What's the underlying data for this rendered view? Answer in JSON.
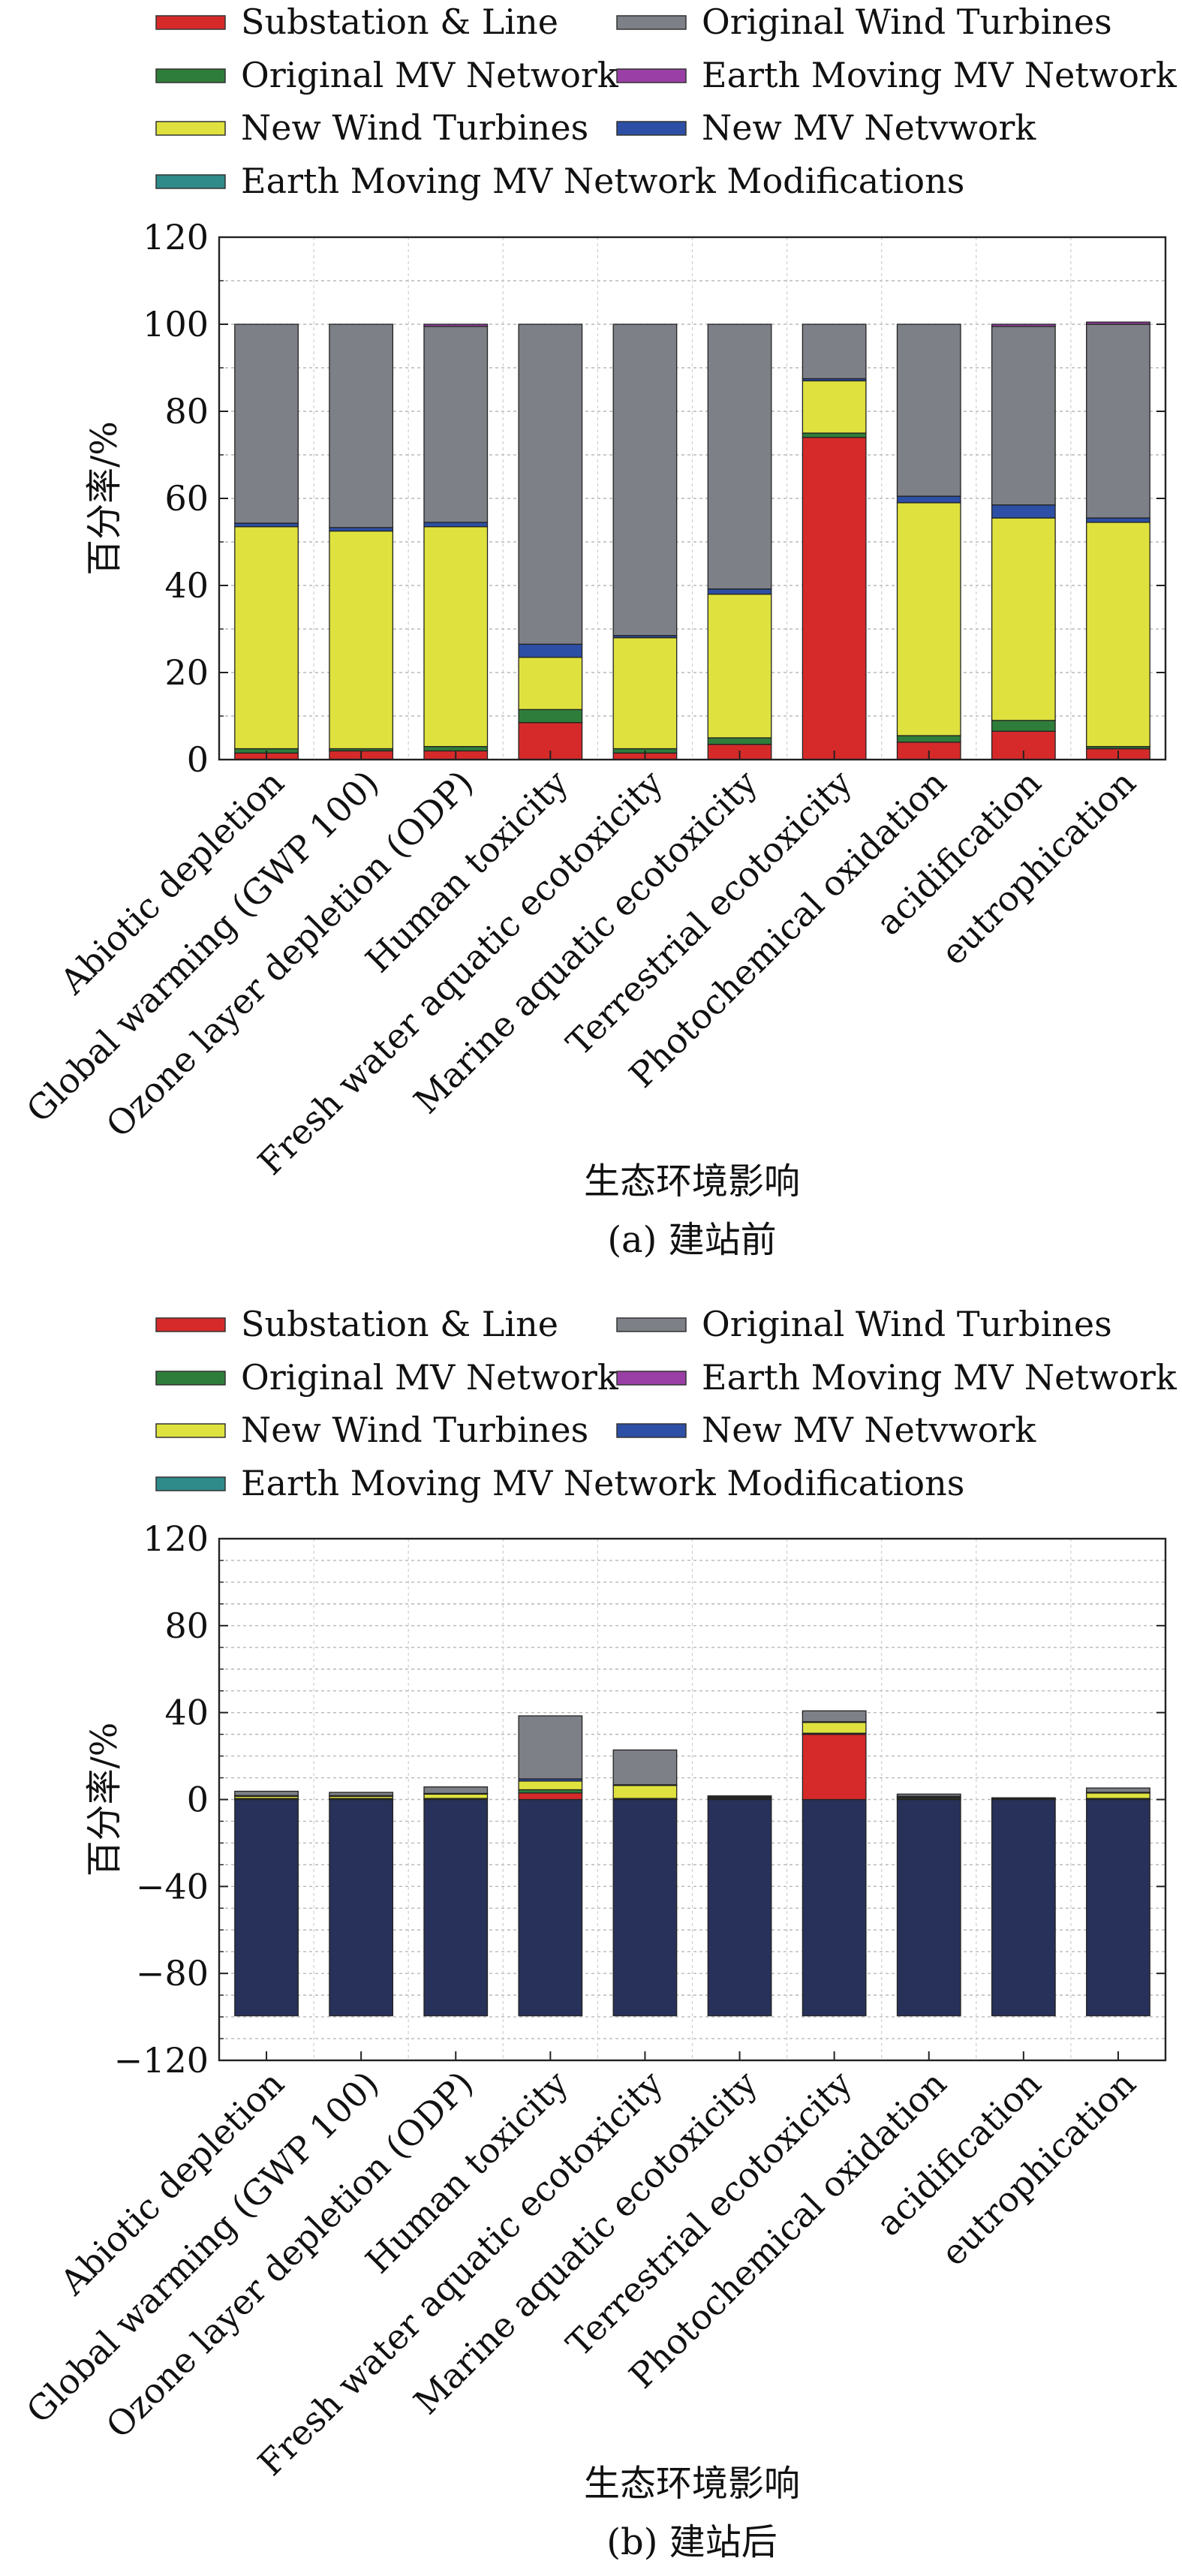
{
  "legend": [
    {
      "label": "Substation & Line",
      "color": "#d62a2a"
    },
    {
      "label": "Original Wind Turbines",
      "color": "#7e8087"
    },
    {
      "label": "Original MV Network",
      "color": "#2f7d3a"
    },
    {
      "label": "Earth Moving MV Network",
      "color": "#9a3fa6"
    },
    {
      "label": "New Wind Turbines",
      "color": "#dfe23e"
    },
    {
      "label": "New MV Netvwork",
      "color": "#2d4fa5"
    },
    {
      "label": "Earth Moving MV Network Modifications",
      "color": "#2f8a8a"
    }
  ],
  "chart_data": [
    {
      "type": "bar",
      "stacked": true,
      "caption": "(a) 建站前",
      "xlabel": "生态环境影响",
      "ylabel": "百分率/%",
      "ylim": [
        0,
        120
      ],
      "yticks": [
        0,
        20,
        40,
        60,
        80,
        100,
        120
      ],
      "grid": true,
      "legend_position": "top",
      "categories": [
        "Abiotic depletion",
        "Global warming (GWP 100)",
        "Ozone layer depletion (ODP)",
        "Human toxicity",
        "Fresh water aquatic ecotoxicity",
        "Marine aquatic ecotoxicity",
        "Terrestrial ecotoxicity",
        "Photochemical oxidation",
        "acidification",
        "eutrophication"
      ],
      "series": [
        {
          "name": "Substation & Line",
          "color": "#d62a2a",
          "values": [
            1.5,
            2,
            2,
            8.5,
            1.5,
            3.5,
            74,
            4,
            6.5,
            2.5
          ]
        },
        {
          "name": "Original MV Network",
          "color": "#2f7d3a",
          "values": [
            1,
            0.5,
            1,
            3,
            1,
            1.5,
            1,
            1.5,
            2.5,
            0.5
          ]
        },
        {
          "name": "New Wind Turbines",
          "color": "#dfe23e",
          "values": [
            51,
            50,
            50.5,
            12,
            25.5,
            33,
            12,
            53.5,
            46.5,
            51.5
          ]
        },
        {
          "name": "New MV Netvwork",
          "color": "#2d4fa5",
          "values": [
            0.8,
            0.8,
            1,
            3,
            0.5,
            1.2,
            0.5,
            1.5,
            3,
            1
          ]
        },
        {
          "name": "Original Wind Turbines",
          "color": "#7e8087",
          "values": [
            45.7,
            46.7,
            45,
            73.5,
            71.5,
            60.8,
            12.5,
            39.5,
            41,
            44.5
          ]
        },
        {
          "name": "Earth Moving MV Network",
          "color": "#9a3fa6",
          "values": [
            0,
            0,
            0.5,
            0,
            0,
            0,
            0,
            0,
            0.5,
            0.5
          ]
        }
      ]
    },
    {
      "type": "bar",
      "stacked": true,
      "caption": "(b) 建站后",
      "xlabel": "生态环境影响",
      "ylabel": "百分率/%",
      "ylim": [
        -120,
        120
      ],
      "yticks": [
        -120,
        -80,
        -40,
        0,
        40,
        80,
        120
      ],
      "grid": true,
      "legend_position": "top",
      "categories": [
        "Abiotic depletion",
        "Global warming (GWP 100)",
        "Ozone layer depletion (ODP)",
        "Human toxicity",
        "Fresh water aquatic ecotoxicity",
        "Marine aquatic ecotoxicity",
        "Terrestrial ecotoxicity",
        "Photochemical oxidation",
        "acidification",
        "eutrophication"
      ],
      "series": [
        {
          "name": "Earth Moving MV Network Modifications",
          "color": "#283159",
          "values": [
            -99.5,
            -99.5,
            -99.5,
            -99.5,
            -99.5,
            -99.5,
            -99.5,
            -99.5,
            -99.5,
            -99.5
          ]
        },
        {
          "name": "Substation & Line",
          "color": "#d62a2a",
          "values": [
            0,
            0,
            0,
            3,
            0,
            0,
            30,
            0,
            0,
            0
          ]
        },
        {
          "name": "Original MV Network",
          "color": "#2f7d3a",
          "values": [
            0.5,
            0.5,
            0.5,
            1.5,
            0.5,
            0.5,
            0.5,
            0.5,
            0.5,
            0.5
          ]
        },
        {
          "name": "New Wind Turbines",
          "color": "#dfe23e",
          "values": [
            1,
            1,
            2,
            4,
            6,
            0.5,
            5,
            0.5,
            0,
            2.5
          ]
        },
        {
          "name": "New MV Netvwork",
          "color": "#2d4fa5",
          "values": [
            0.3,
            0.3,
            0.3,
            1,
            0.3,
            0.2,
            0.3,
            0.5,
            0.3,
            0.3
          ]
        },
        {
          "name": "Original Wind Turbines",
          "color": "#7e8087",
          "values": [
            2,
            1.5,
            3,
            29,
            16,
            0.5,
            5,
            1,
            0,
            2
          ]
        }
      ]
    }
  ]
}
